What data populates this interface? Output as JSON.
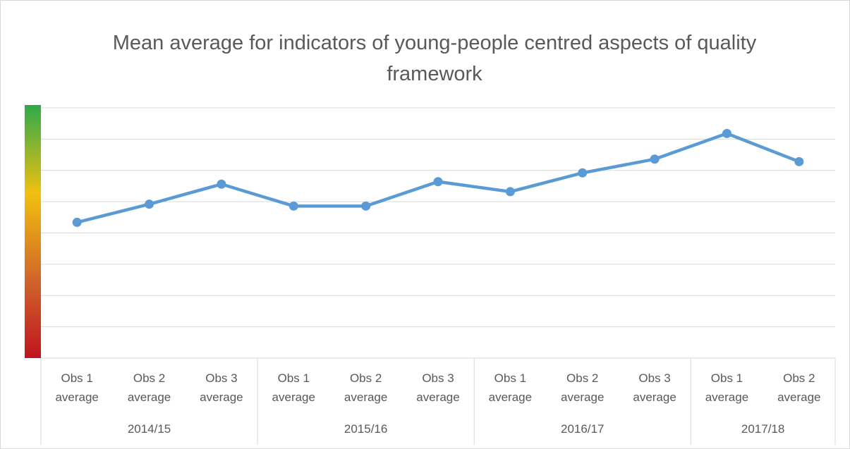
{
  "chart_data": {
    "type": "line",
    "title": "Mean average for indicators of young-people centred aspects of quality framework",
    "groups": [
      {
        "label": "2014/15",
        "categories": [
          "Obs 1 average",
          "Obs 2 average",
          "Obs 3 average"
        ]
      },
      {
        "label": "2015/16",
        "categories": [
          "Obs 1 average",
          "Obs 2 average",
          "Obs 3 average"
        ]
      },
      {
        "label": "2016/17",
        "categories": [
          "Obs 1 average",
          "Obs 2 average",
          "Obs 3 average"
        ]
      },
      {
        "label": "2017/18",
        "categories": [
          "Obs 1 average",
          "Obs 2 average"
        ]
      }
    ],
    "values": [
      2.17,
      2.46,
      2.78,
      2.43,
      2.43,
      2.82,
      2.66,
      2.96,
      3.18,
      3.59,
      3.14
    ],
    "color": "#5b9bd5",
    "ylim": [
      0,
      4
    ],
    "yticks": [
      0,
      0.5,
      1,
      1.5,
      2,
      2.5,
      3,
      3.5,
      4
    ],
    "grid": true
  }
}
